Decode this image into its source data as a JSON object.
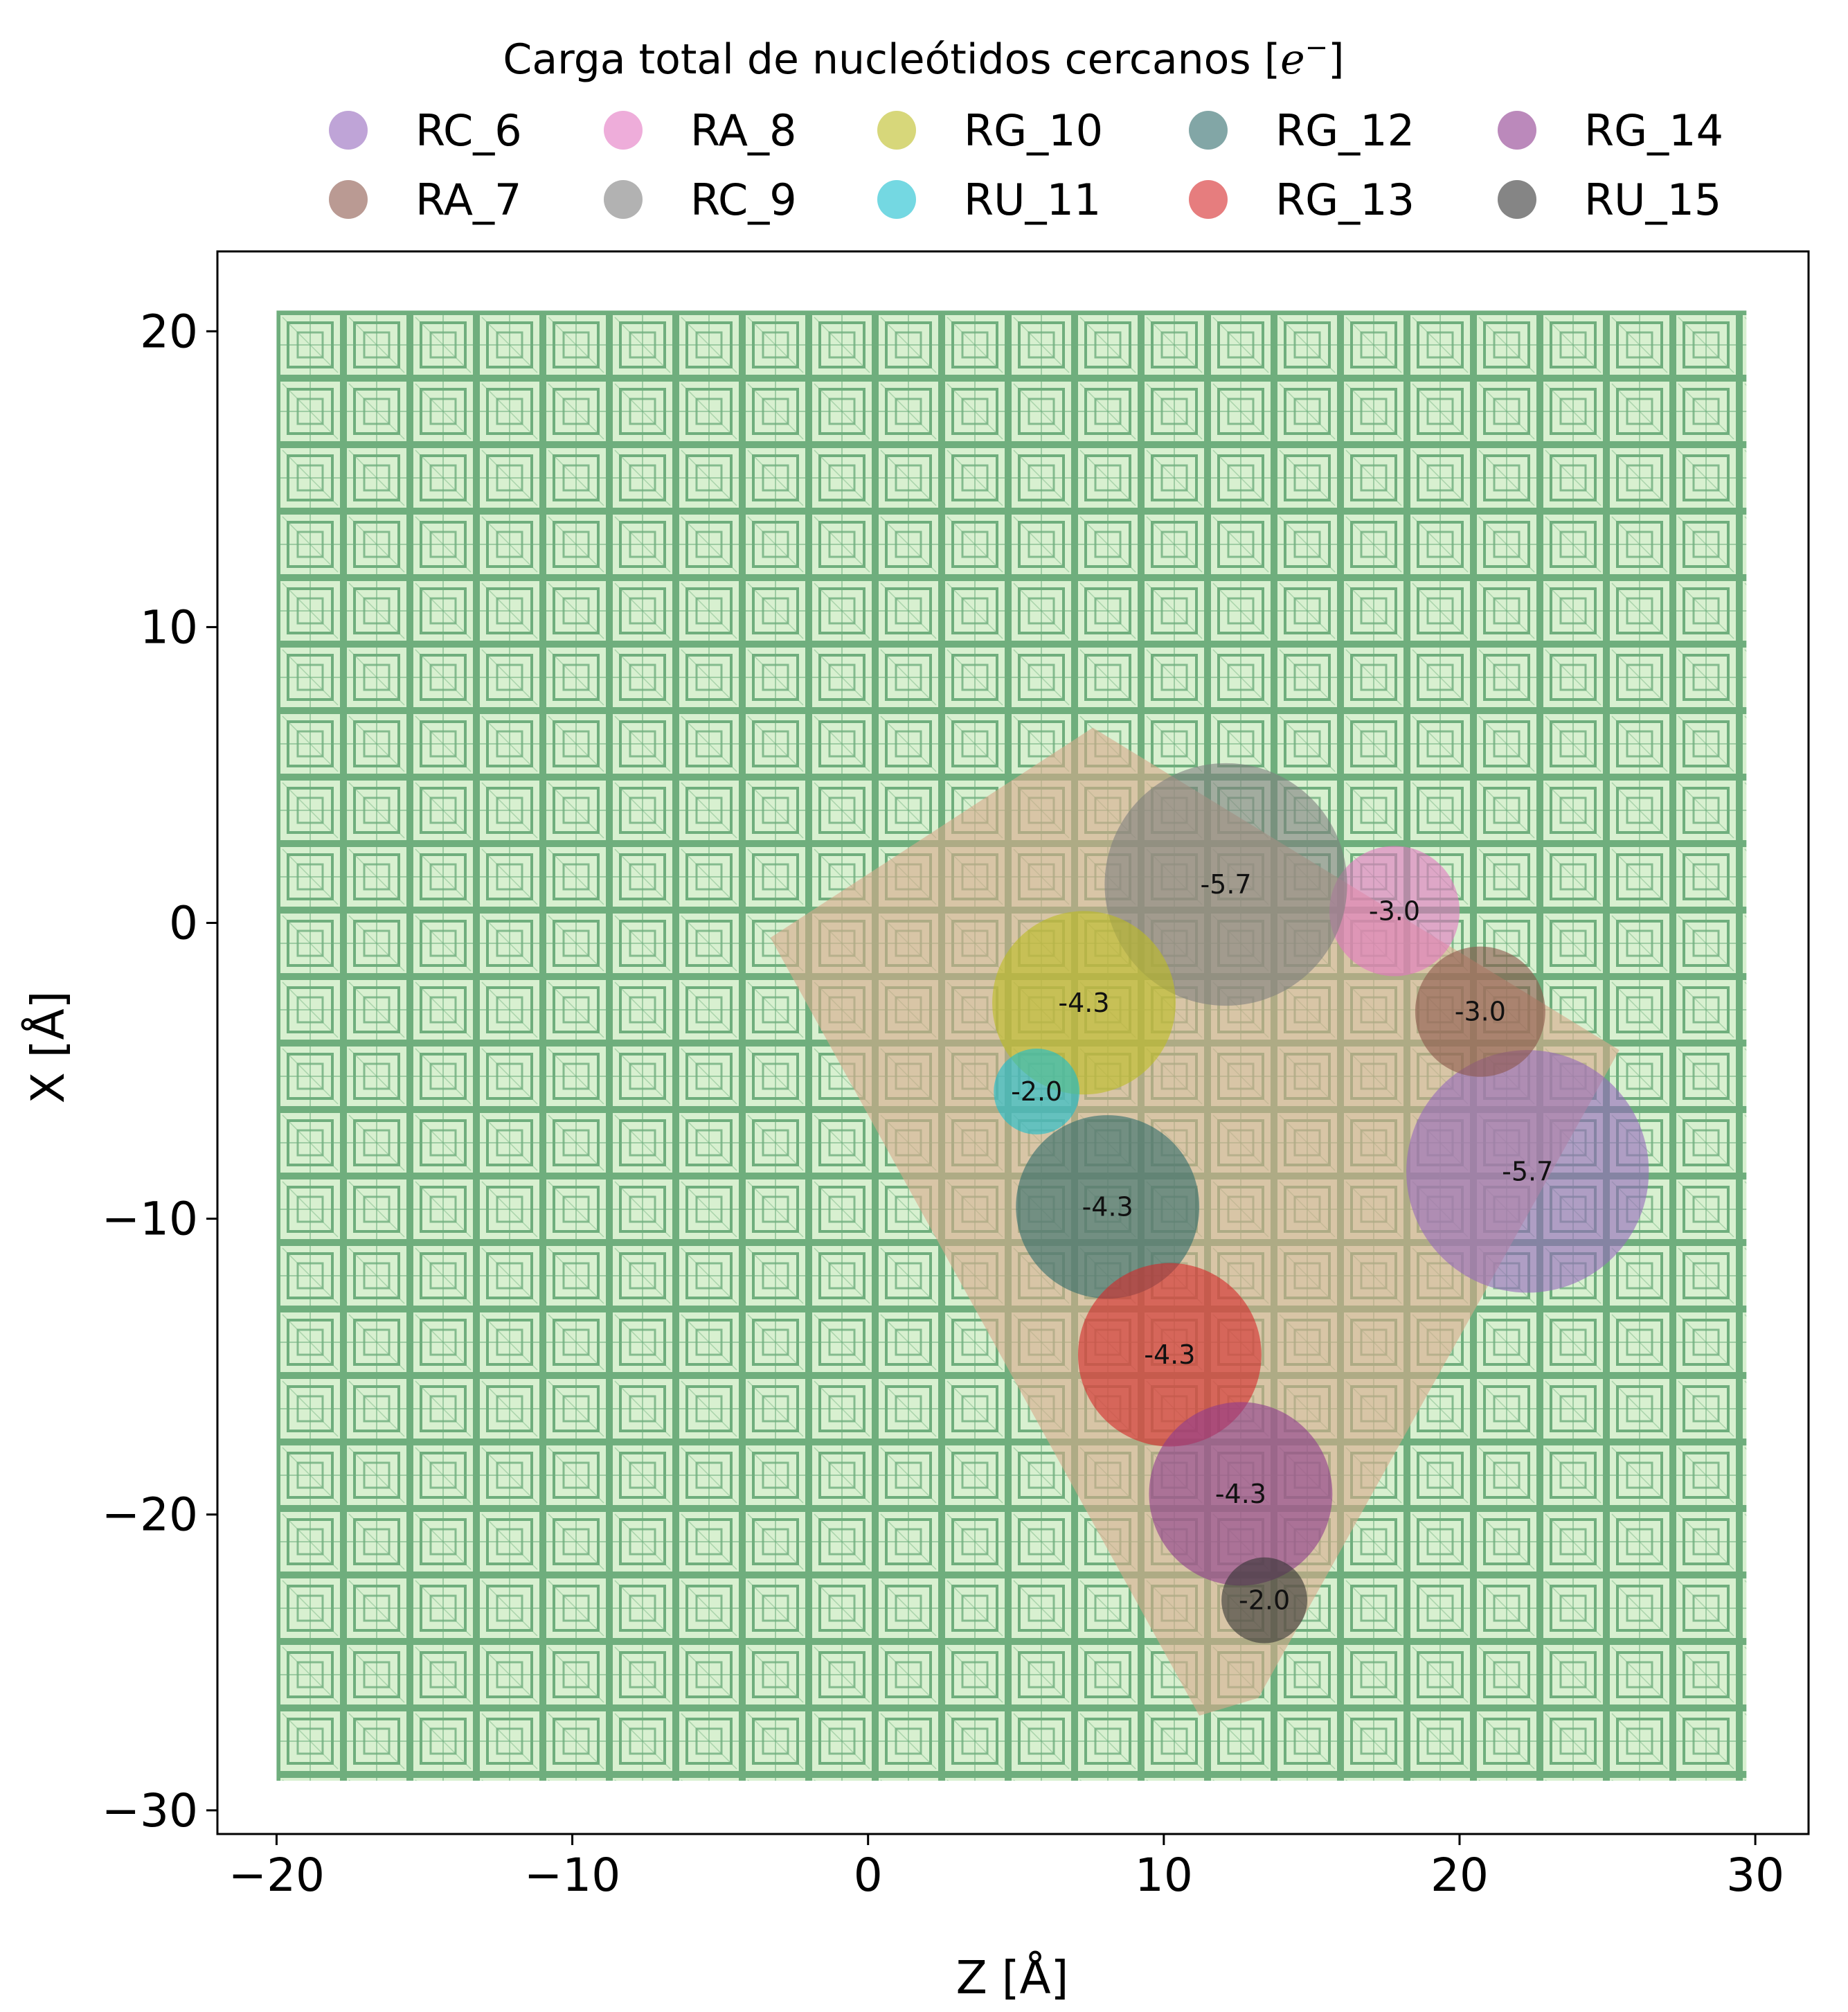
{
  "chart_data": {
    "type": "scatter",
    "xlabel": "Z [Å]",
    "ylabel": "X [Å]",
    "xlim": [
      -22,
      31.8
    ],
    "ylim": [
      -30.8,
      22.7
    ],
    "xticks": [
      -20,
      -10,
      0,
      10,
      20,
      30
    ],
    "yticks": [
      -30,
      -20,
      -10,
      0,
      10,
      20
    ],
    "xtick_labels": [
      "−20",
      "−10",
      "0",
      "10",
      "20",
      "30"
    ],
    "ytick_labels": [
      "−30",
      "−20",
      "−10",
      "0",
      "10",
      "20"
    ],
    "grid": false,
    "background": {
      "description": "dense green point cloud",
      "z_range": [
        -20,
        29.7
      ],
      "x_range": [
        -29,
        20.7
      ],
      "fill_color": "#d8f0d0",
      "pattern_color": "#6fae7d"
    },
    "hull": {
      "color": "#d9a98a",
      "vertices": [
        [
          -3.3,
          -0.5
        ],
        [
          7.6,
          6.6
        ],
        [
          25.4,
          -4.3
        ],
        [
          13.2,
          -26.2
        ],
        [
          11.2,
          -26.8
        ]
      ]
    },
    "legend": {
      "title_text": "Carga total de nucleótidos cercanos [",
      "title_math": "e",
      "title_sup": "−",
      "title_close": "]",
      "placement": "top-center",
      "ncols": 5
    },
    "series": [
      {
        "name": "RC_6",
        "color": "#9467bd",
        "z": 22.3,
        "x": -8.4,
        "r": 4.1,
        "label": "-5.7"
      },
      {
        "name": "RA_7",
        "color": "#8c564b",
        "z": 20.7,
        "x": -3.0,
        "r": 2.2,
        "label": "-3.0"
      },
      {
        "name": "RA_8",
        "color": "#e377c2",
        "z": 17.8,
        "x": 0.4,
        "r": 2.2,
        "label": "-3.0"
      },
      {
        "name": "RC_9",
        "color": "#7f7f7f",
        "z": 12.1,
        "x": 1.3,
        "r": 4.1,
        "label": "-5.7"
      },
      {
        "name": "RG_10",
        "color": "#bcbd22",
        "z": 7.3,
        "x": -2.7,
        "r": 3.1,
        "label": "-4.3"
      },
      {
        "name": "RU_11",
        "color": "#17becf",
        "z": 5.7,
        "x": -5.7,
        "r": 1.45,
        "label": "-2.0"
      },
      {
        "name": "RG_12",
        "color": "#2f6b6b",
        "z": 8.1,
        "x": -9.6,
        "r": 3.1,
        "label": "-4.3"
      },
      {
        "name": "RG_13",
        "color": "#d62728",
        "z": 10.2,
        "x": -14.6,
        "r": 3.1,
        "label": "-4.3"
      },
      {
        "name": "RG_14",
        "color": "#8e3a8e",
        "z": 12.6,
        "x": -19.3,
        "r": 3.1,
        "label": "-4.3"
      },
      {
        "name": "RU_15",
        "color": "#333333",
        "z": 13.4,
        "x": -22.9,
        "r": 1.45,
        "label": "-2.0"
      }
    ]
  }
}
